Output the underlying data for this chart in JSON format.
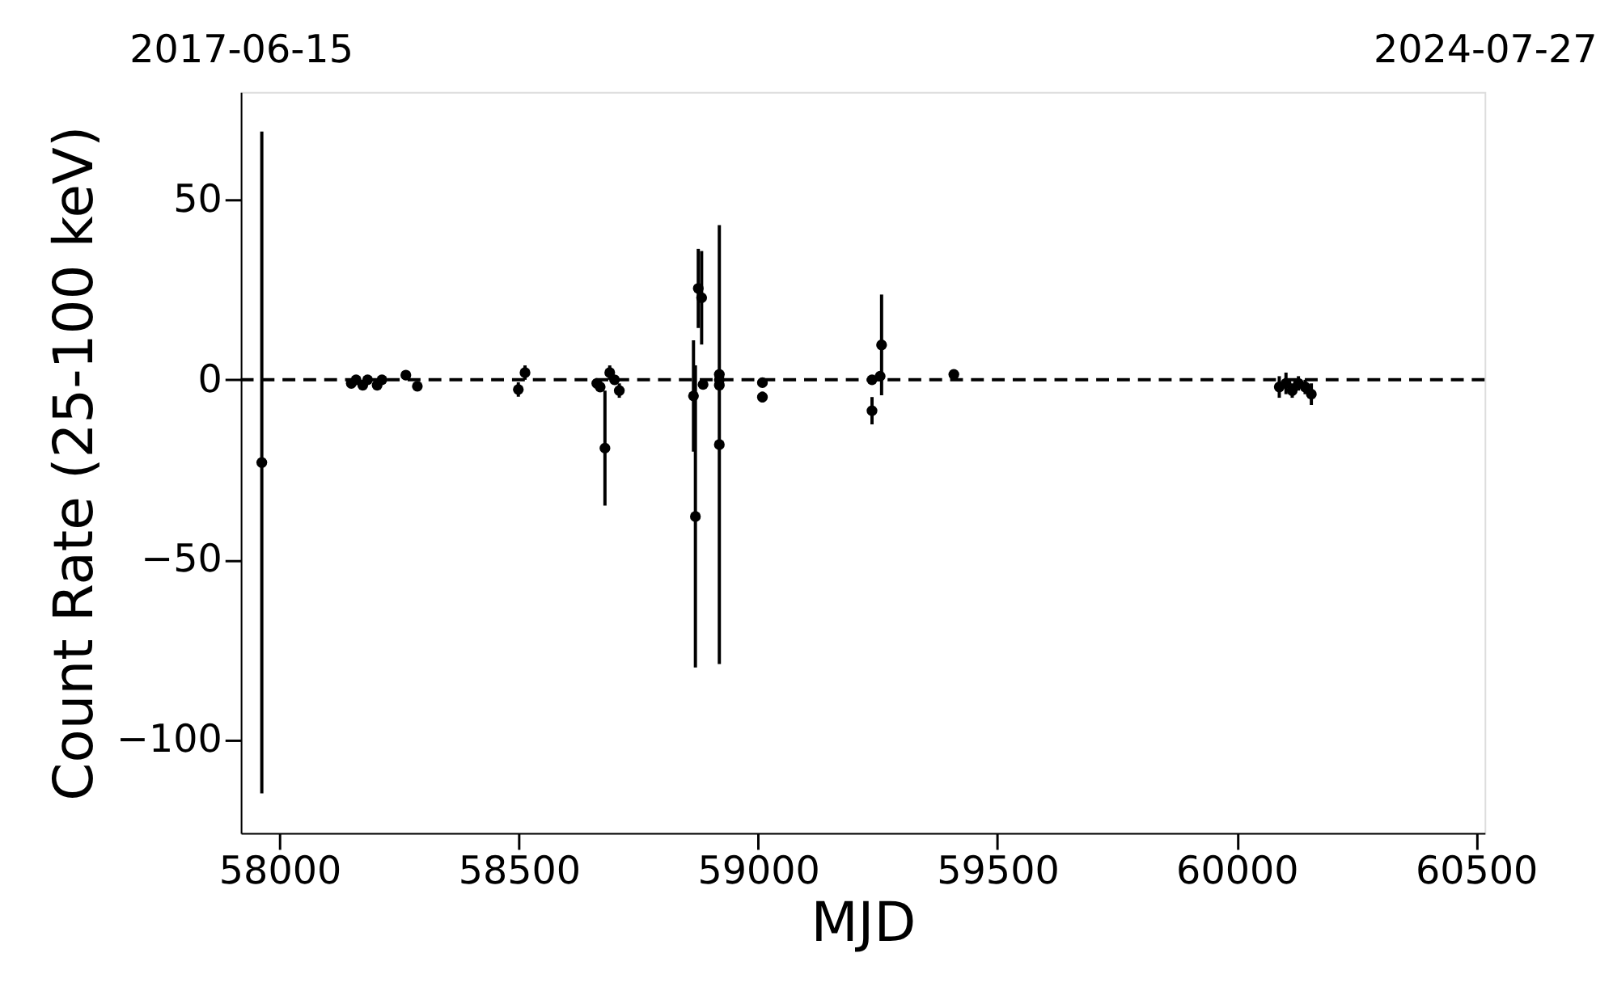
{
  "chart_data": {
    "type": "scatter",
    "xlabel": "MJD",
    "ylabel": "Count Rate (25-100 keV)",
    "x": [
      57963,
      58150,
      58160,
      58174,
      58184,
      58204,
      58214,
      58264,
      58288,
      58499,
      58513,
      58663,
      58670,
      58680,
      58690,
      58700,
      58710,
      58865,
      58869,
      58875,
      58882,
      58885,
      58919,
      58919,
      58919,
      58919,
      59009,
      59009,
      59238,
      59238,
      59255,
      59258,
      59409,
      60089,
      60103,
      60116,
      60129,
      60143,
      60156
    ],
    "values": [
      -23,
      -1,
      0,
      -1.5,
      0,
      -1.5,
      0,
      1.3,
      -1.8,
      -2.7,
      2,
      -1,
      -2,
      -19,
      2,
      0,
      -3,
      -4.5,
      -38,
      25.4,
      22.8,
      -1.3,
      -18,
      0,
      1.5,
      -1.5,
      -0.8,
      -4.8,
      0,
      -8.6,
      1,
      9.7,
      1.5,
      -2,
      -1,
      -3,
      -1,
      -2,
      -4
    ],
    "errors": [
      92,
      1,
      1,
      1,
      1,
      1,
      1,
      1,
      1,
      2,
      2,
      1,
      1,
      16,
      2,
      1,
      2,
      15.5,
      42,
      11,
      13,
      1,
      61,
      1,
      1,
      1,
      1,
      1.5,
      1,
      3.8,
      1,
      14,
      1,
      3,
      3,
      2,
      2,
      2,
      3
    ],
    "color": "#000000",
    "marker": "circle",
    "xlim": [
      57919,
      60518
    ],
    "xticks": [
      58000,
      58500,
      59000,
      59500,
      60000,
      60500
    ],
    "ylim": [
      -126,
      80
    ],
    "yticks": [
      {
        "value": -100,
        "label": "−100"
      },
      {
        "value": -50,
        "label": "−50"
      },
      0,
      50
    ],
    "x2lim": [
      "2017-06-15",
      "2024-07-27"
    ],
    "x2ticks": [
      "2017-06-15",
      "2024-07-27"
    ],
    "ref_lines": [
      {
        "axis": "y",
        "value": 0,
        "color": "#000000",
        "line_style": "dashed"
      }
    ],
    "grid": false
  }
}
